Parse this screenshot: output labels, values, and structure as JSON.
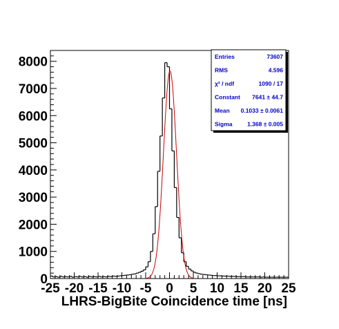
{
  "chart_data": {
    "type": "histogram",
    "xlabel": "LHRS-BigBite Coincidence time [ns]",
    "ylabel": "",
    "xlim": [
      -25,
      25
    ],
    "ylim": [
      0,
      8400
    ],
    "x_ticks": [
      "-25",
      "-20",
      "-15",
      "-10",
      "-5",
      "0",
      "5",
      "10",
      "15",
      "20",
      "25"
    ],
    "y_ticks": [
      "0",
      "1000",
      "2000",
      "3000",
      "4000",
      "5000",
      "6000",
      "7000",
      "8000"
    ],
    "grid": false,
    "bin_width": 0.5,
    "series": [
      {
        "kind": "step",
        "color": "#000000",
        "x": [
          -25,
          -24.5,
          -24,
          -23.5,
          -23,
          -22.5,
          -22,
          -21.5,
          -21,
          -20.5,
          -20,
          -19.5,
          -19,
          -18.5,
          -18,
          -17.5,
          -17,
          -16.5,
          -16,
          -15.5,
          -15,
          -14.5,
          -14,
          -13.5,
          -13,
          -12.5,
          -12,
          -11.5,
          -11,
          -10.5,
          -10,
          -9.5,
          -9,
          -8.5,
          -8,
          -7.5,
          -7,
          -6.5,
          -6,
          -5.5,
          -5,
          -4.5,
          -4,
          -3.5,
          -3,
          -2.5,
          -2,
          -1.5,
          -1,
          -0.5,
          0,
          0.5,
          1,
          1.5,
          2,
          2.5,
          3,
          3.5,
          4,
          4.5,
          5,
          5.5,
          6,
          6.5,
          7,
          7.5,
          8,
          8.5,
          9,
          9.5,
          10,
          10.5,
          11,
          11.5,
          12,
          12.5,
          13,
          13.5,
          14,
          14.5,
          15,
          15.5,
          16,
          16.5,
          17,
          17.5,
          18,
          18.5,
          19,
          19.5,
          20,
          20.5,
          21,
          21.5,
          22,
          22.5,
          23,
          23.5,
          24,
          24.5
        ],
        "values": [
          90,
          60,
          70,
          50,
          80,
          60,
          70,
          60,
          80,
          50,
          70,
          60,
          80,
          60,
          70,
          50,
          80,
          60,
          70,
          60,
          80,
          60,
          70,
          60,
          80,
          70,
          90,
          80,
          90,
          100,
          110,
          120,
          130,
          140,
          160,
          170,
          200,
          230,
          270,
          320,
          430,
          620,
          1000,
          1650,
          2650,
          3950,
          5250,
          6650,
          7950,
          7800,
          6250,
          4700,
          3350,
          2250,
          1500,
          950,
          620,
          450,
          350,
          280,
          230,
          200,
          180,
          160,
          150,
          140,
          130,
          120,
          110,
          110,
          100,
          100,
          90,
          90,
          90,
          80,
          80,
          80,
          70,
          70,
          70,
          70,
          60,
          60,
          60,
          60,
          60,
          60,
          50,
          60,
          50,
          50,
          50,
          50,
          50,
          50,
          50,
          50,
          50,
          50
        ]
      },
      {
        "kind": "gaussian_fit",
        "color": "#cc0000",
        "constant": 7641,
        "mean": 0.1033,
        "sigma": 1.368,
        "x_range": [
          -5,
          5
        ]
      }
    ]
  },
  "stats_box": {
    "rows": [
      {
        "label": "Entries",
        "value": "73607"
      },
      {
        "label": "RMS",
        "value": "4.596"
      },
      {
        "label": "χ² / ndf",
        "value": "1090 / 17"
      },
      {
        "label": "Constant",
        "value": "7641 ± 44.7"
      },
      {
        "label": "Mean",
        "value": "0.1033 ± 0.0061"
      },
      {
        "label": "Sigma",
        "value": "1.368 ± 0.005"
      }
    ]
  }
}
